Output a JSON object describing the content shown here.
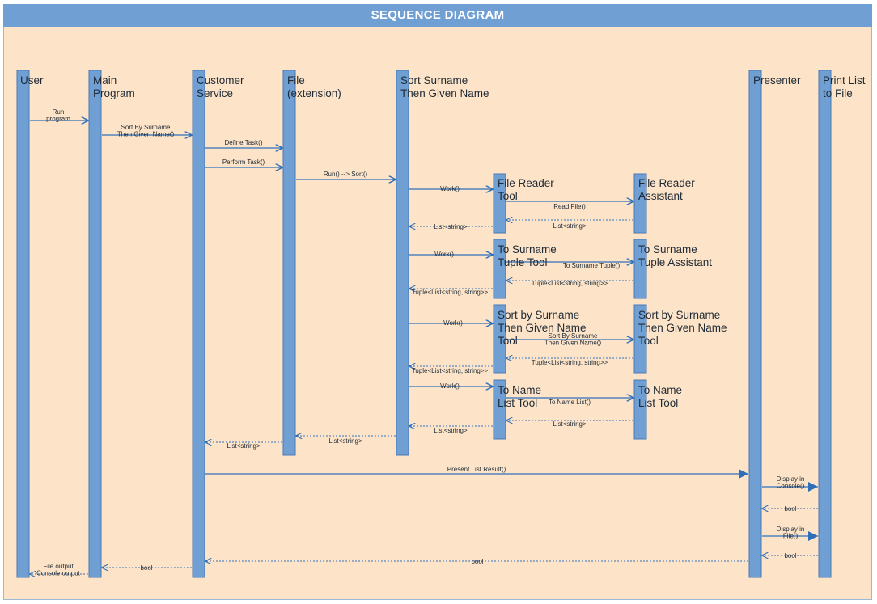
{
  "title": "SEQUENCE DIAGRAM",
  "colors": {
    "background": "#fde4c8",
    "header": "#6f9fd3",
    "lifeline": "#6f9fd3",
    "lifeline_border": "#4a79b4",
    "arrow": "#2f6fba"
  },
  "participants": [
    {
      "id": "user",
      "label": [
        "User"
      ]
    },
    {
      "id": "main",
      "label": [
        "Main",
        "Program"
      ]
    },
    {
      "id": "customer",
      "label": [
        "Customer",
        "Service"
      ]
    },
    {
      "id": "file",
      "label": [
        "File",
        "(extension)"
      ]
    },
    {
      "id": "sort",
      "label": [
        "Sort Surname",
        "Then Given Name"
      ]
    },
    {
      "id": "presenter",
      "label": [
        "Presenter"
      ]
    },
    {
      "id": "print",
      "label": [
        "Print List",
        "to File"
      ]
    }
  ],
  "tools": [
    {
      "id": "frt",
      "label": [
        "File Reader",
        "Tool"
      ]
    },
    {
      "id": "fra",
      "label": [
        "File Reader",
        "Assistant"
      ]
    },
    {
      "id": "tst",
      "label": [
        "To Surname",
        "Tuple Tool"
      ]
    },
    {
      "id": "tsa",
      "label": [
        "To Surname",
        "Tuple Assistant"
      ]
    },
    {
      "id": "sbt",
      "label": [
        "Sort by Surname",
        "Then Given Name",
        "Tool"
      ]
    },
    {
      "id": "sbt2",
      "label": [
        "Sort by Surname",
        "Then Given Name",
        "Tool"
      ]
    },
    {
      "id": "tnl",
      "label": [
        "To Name",
        "List Tool"
      ]
    },
    {
      "id": "tnl2",
      "label": [
        "To Name",
        "List Tool"
      ]
    }
  ],
  "messages": [
    {
      "id": "run-program",
      "label": [
        "Run",
        "program"
      ],
      "kind": "call"
    },
    {
      "id": "sort-by-surname",
      "label": [
        "Sort By Surname",
        "Then Given Name()"
      ],
      "kind": "call"
    },
    {
      "id": "define-task",
      "label": [
        "Define Task()"
      ],
      "kind": "call"
    },
    {
      "id": "perform-task",
      "label": [
        "Perform Task()"
      ],
      "kind": "call"
    },
    {
      "id": "run-sort",
      "label": [
        "Run() --> Sort()"
      ],
      "kind": "call"
    },
    {
      "id": "work-1",
      "label": [
        "Work()"
      ],
      "kind": "call"
    },
    {
      "id": "read-file",
      "label": [
        "Read File()"
      ],
      "kind": "call"
    },
    {
      "id": "ret-list-fra",
      "label": [
        "List<string>"
      ],
      "kind": "return"
    },
    {
      "id": "ret-list-frt",
      "label": [
        "List<string>"
      ],
      "kind": "return"
    },
    {
      "id": "work-2",
      "label": [
        "Work()"
      ],
      "kind": "call"
    },
    {
      "id": "to-surname-tuple",
      "label": [
        "To Surname Tuple()"
      ],
      "kind": "call"
    },
    {
      "id": "ret-tuple-tsa",
      "label": [
        "Tuple<List<string, string>>"
      ],
      "kind": "return"
    },
    {
      "id": "ret-tuple-tst",
      "label": [
        "Tuple<List<string, string>>"
      ],
      "kind": "return"
    },
    {
      "id": "work-3",
      "label": [
        "Work()"
      ],
      "kind": "call"
    },
    {
      "id": "sort-by-surname-2",
      "label": [
        "Sort By Surname",
        "Then Given Name()"
      ],
      "kind": "call"
    },
    {
      "id": "ret-tuple-sbt2",
      "label": [
        "Tuple<List<string, string>>"
      ],
      "kind": "return"
    },
    {
      "id": "ret-tuple-sbt",
      "label": [
        "Tuple<List<string, string>>"
      ],
      "kind": "return"
    },
    {
      "id": "work-4",
      "label": [
        "Work()"
      ],
      "kind": "call"
    },
    {
      "id": "to-name-list",
      "label": [
        "To Name List()"
      ],
      "kind": "call"
    },
    {
      "id": "ret-list-tnl2",
      "label": [
        "List<string>"
      ],
      "kind": "return"
    },
    {
      "id": "ret-list-tnl",
      "label": [
        "List<string>"
      ],
      "kind": "return"
    },
    {
      "id": "ret-list-sort",
      "label": [
        "List<string>"
      ],
      "kind": "return"
    },
    {
      "id": "ret-list-file",
      "label": [
        "List<string>"
      ],
      "kind": "return"
    },
    {
      "id": "present-list",
      "label": [
        "Present List Result()"
      ],
      "kind": "call"
    },
    {
      "id": "display-console",
      "label": [
        "Display in",
        "Console()"
      ],
      "kind": "call"
    },
    {
      "id": "ret-bool-1",
      "label": [
        "bool"
      ],
      "kind": "return"
    },
    {
      "id": "display-file",
      "label": [
        "Display in",
        "File()"
      ],
      "kind": "call"
    },
    {
      "id": "ret-bool-2",
      "label": [
        "bool"
      ],
      "kind": "return"
    },
    {
      "id": "ret-bool-presenter",
      "label": [
        "bool"
      ],
      "kind": "return"
    },
    {
      "id": "ret-bool-customer",
      "label": [
        "bool"
      ],
      "kind": "return"
    },
    {
      "id": "file-output",
      "label": [
        "File output",
        "Console output"
      ],
      "kind": "return"
    }
  ]
}
